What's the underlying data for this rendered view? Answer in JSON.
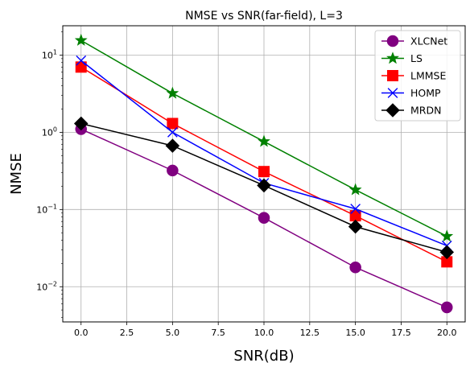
{
  "chart_data": {
    "type": "line",
    "title": "NMSE vs SNR(far-field), L=3",
    "xlabel": "SNR(dB)",
    "ylabel": "NMSE",
    "xlim": [
      -1,
      21
    ],
    "ylim": [
      0.0035,
      24
    ],
    "yscale": "log",
    "grid": true,
    "legend_position": "top-right",
    "x": [
      0,
      5,
      10,
      15,
      20
    ],
    "x_ticks": [
      0.0,
      2.5,
      5.0,
      7.5,
      10.0,
      12.5,
      15.0,
      17.5,
      20.0
    ],
    "x_tick_labels": [
      "0.0",
      "2.5",
      "5.0",
      "7.5",
      "10.0",
      "12.5",
      "15.0",
      "17.5",
      "20.0"
    ],
    "y_ticks": [
      0.01,
      0.1,
      1,
      10
    ],
    "y_tick_labels": [
      {
        "base": "10",
        "exp": "−2"
      },
      {
        "base": "10",
        "exp": "−1"
      },
      {
        "base": "10",
        "exp": "0"
      },
      {
        "base": "10",
        "exp": "1"
      }
    ],
    "series": [
      {
        "name": "XLCNet",
        "color": "#800080",
        "marker": "circle",
        "values": [
          1.1,
          0.32,
          0.078,
          0.0178,
          0.0054
        ]
      },
      {
        "name": "LS",
        "color": "#008000",
        "marker": "star",
        "values": [
          15.5,
          3.2,
          0.76,
          0.18,
          0.045
        ]
      },
      {
        "name": "LMMSE",
        "color": "#ff0000",
        "marker": "square",
        "values": [
          7.0,
          1.3,
          0.31,
          0.083,
          0.021
        ]
      },
      {
        "name": "HOMP",
        "color": "#0000ff",
        "marker": "x",
        "values": [
          8.5,
          1.0,
          0.22,
          0.102,
          0.034
        ]
      },
      {
        "name": "MRDN",
        "color": "#000000",
        "marker": "diamond",
        "values": [
          1.3,
          0.67,
          0.205,
          0.06,
          0.028
        ]
      }
    ]
  }
}
